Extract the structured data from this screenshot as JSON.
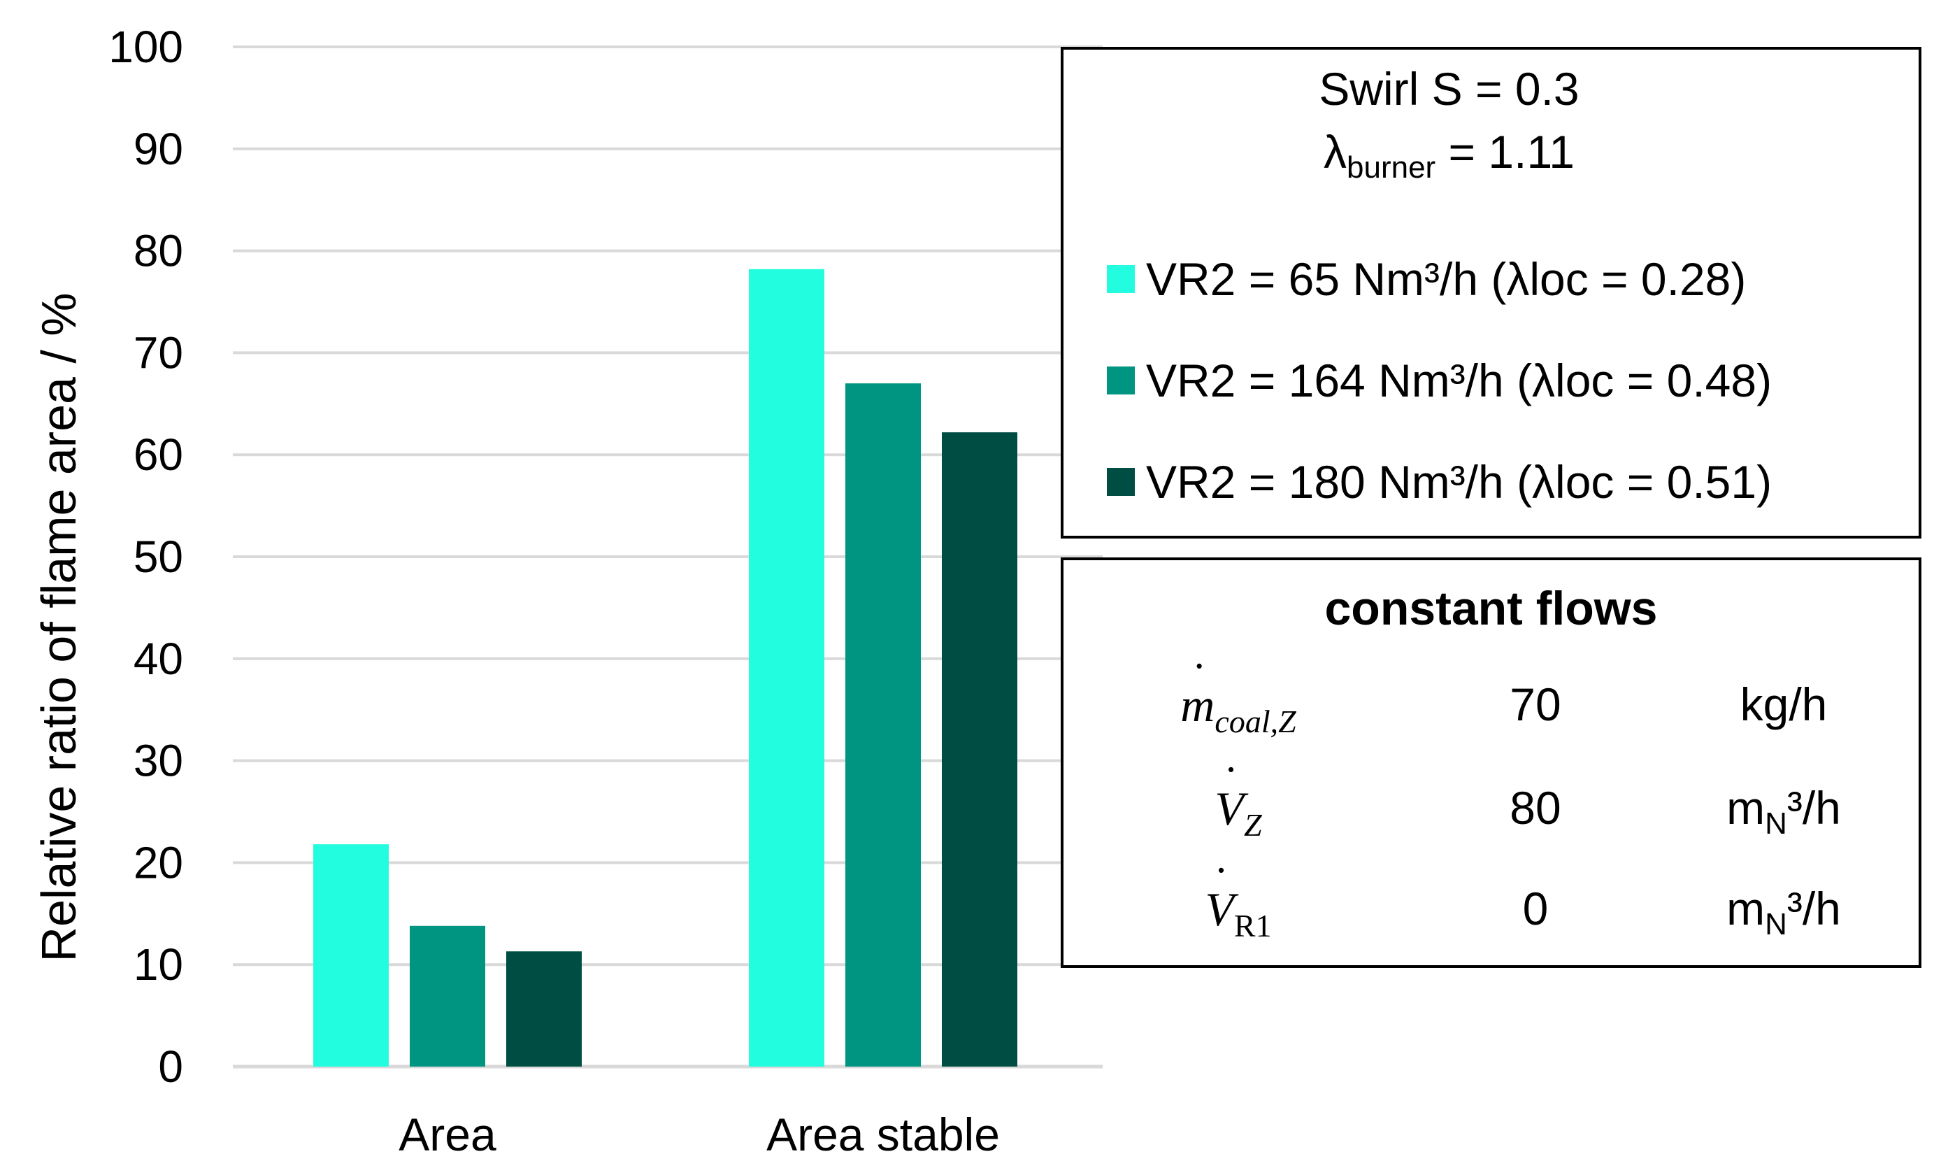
{
  "chart_data": {
    "type": "bar",
    "title": "",
    "xlabel": "",
    "ylabel": "Relative ratio of flame area / %",
    "ylim": [
      0,
      100
    ],
    "yticks": [
      0,
      10,
      20,
      30,
      40,
      50,
      60,
      70,
      80,
      90,
      100
    ],
    "categories": [
      "Area",
      "Area stable"
    ],
    "series": [
      {
        "name": "VR2 = 65 Nm³/h (λloc = 0.28)",
        "color": "#22fde0",
        "values": [
          21.8,
          78.2
        ]
      },
      {
        "name": "VR2 = 164 Nm³/h (λloc = 0.48)",
        "color": "#009580",
        "values": [
          13.8,
          67.0
        ]
      },
      {
        "name": "VR2 = 180 Nm³/h (λloc = 0.51)",
        "color": "#004d43",
        "values": [
          11.3,
          62.2
        ]
      }
    ],
    "grid": true,
    "legend_position": "top-right"
  },
  "legend": {
    "swirl": "Swirl S = 0.3",
    "lambda_symbol": "λ",
    "lambda_sub": "burner",
    "lambda_value": " = 1.11"
  },
  "flows": {
    "title": "constant flows",
    "rows": [
      {
        "symbol": "m",
        "sub": "coal,Z",
        "value": "70",
        "unit": "kg/h",
        "unit_base": "",
        "unit_sub": "",
        "unit_rest": ""
      },
      {
        "symbol": "V",
        "sub": "Z",
        "value": "80",
        "unit": "",
        "unit_base": "m",
        "unit_sub": "N",
        "unit_rest": "³/h"
      },
      {
        "symbol": "V",
        "sub": "R1",
        "value": "0",
        "unit": "",
        "unit_base": "m",
        "unit_sub": "N",
        "unit_rest": "³/h"
      }
    ]
  }
}
